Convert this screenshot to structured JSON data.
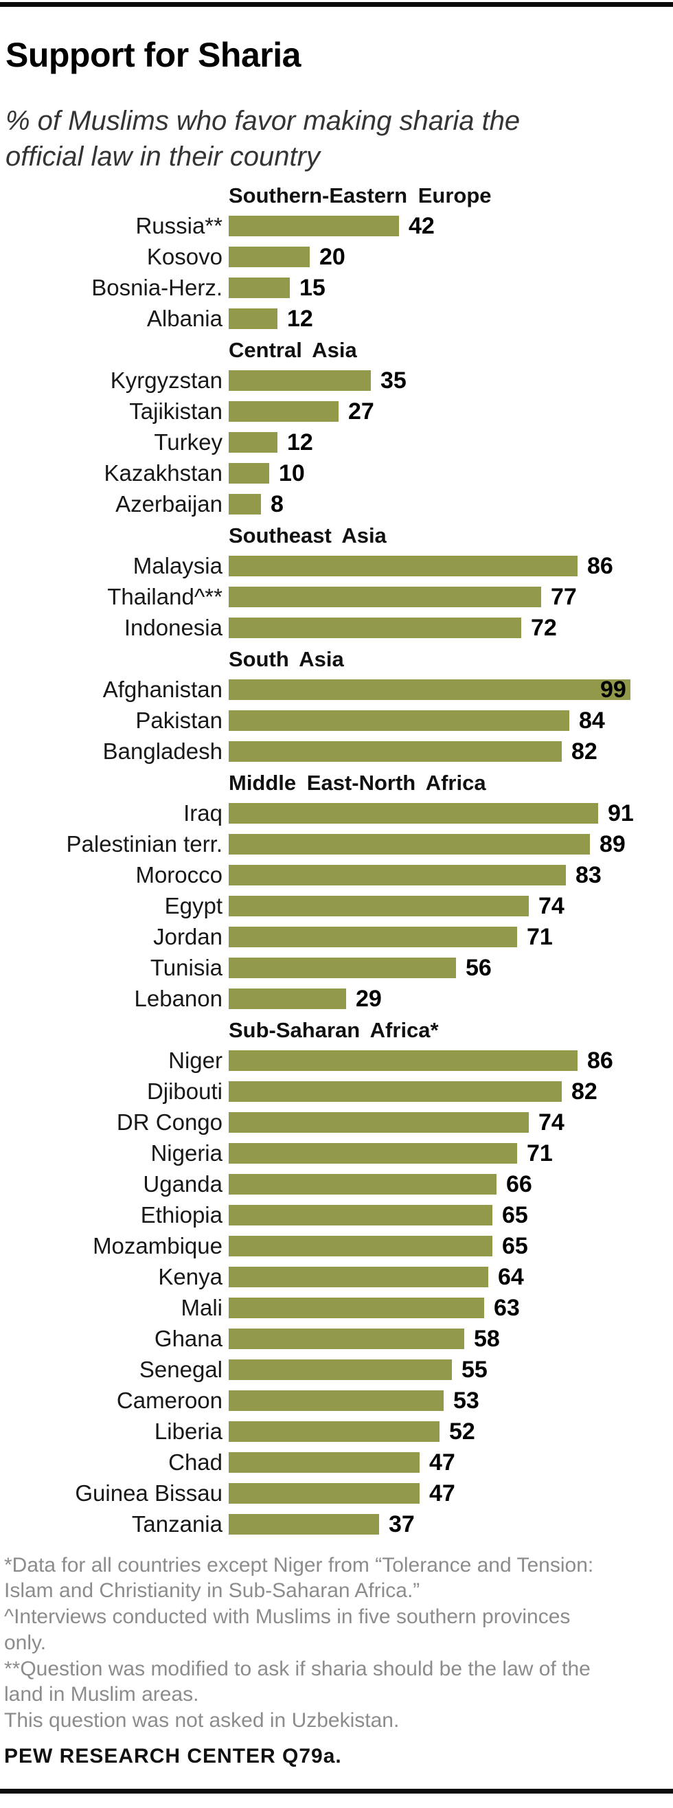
{
  "page": {
    "title": "Support for Sharia",
    "subtitle": "% of Muslims who favor making sharia the official law in their country"
  },
  "chart_data": {
    "type": "bar",
    "orientation": "horizontal",
    "unit": "% of Muslims",
    "xlim": [
      0,
      100
    ],
    "bar_color": "#93994B",
    "grid": false,
    "legend": false,
    "sections": [
      {
        "label": "Southern-Eastern Europe",
        "rows": [
          {
            "country": "Russia**",
            "value": 42
          },
          {
            "country": "Kosovo",
            "value": 20
          },
          {
            "country": "Bosnia-Herz.",
            "value": 15
          },
          {
            "country": "Albania",
            "value": 12
          }
        ]
      },
      {
        "label": "Central Asia",
        "rows": [
          {
            "country": "Kyrgyzstan",
            "value": 35
          },
          {
            "country": "Tajikistan",
            "value": 27
          },
          {
            "country": "Turkey",
            "value": 12
          },
          {
            "country": "Kazakhstan",
            "value": 10
          },
          {
            "country": "Azerbaijan",
            "value": 8
          }
        ]
      },
      {
        "label": "Southeast Asia",
        "rows": [
          {
            "country": "Malaysia",
            "value": 86
          },
          {
            "country": "Thailand^**",
            "value": 77
          },
          {
            "country": "Indonesia",
            "value": 72
          }
        ]
      },
      {
        "label": "South Asia",
        "rows": [
          {
            "country": "Afghanistan",
            "value": 99
          },
          {
            "country": "Pakistan",
            "value": 84
          },
          {
            "country": "Bangladesh",
            "value": 82
          }
        ]
      },
      {
        "label": "Middle East-North Africa",
        "rows": [
          {
            "country": "Iraq",
            "value": 91
          },
          {
            "country": "Palestinian terr.",
            "value": 89
          },
          {
            "country": "Morocco",
            "value": 83
          },
          {
            "country": "Egypt",
            "value": 74
          },
          {
            "country": "Jordan",
            "value": 71
          },
          {
            "country": "Tunisia",
            "value": 56
          },
          {
            "country": "Lebanon",
            "value": 29
          }
        ]
      },
      {
        "label": "Sub-Saharan Africa*",
        "rows": [
          {
            "country": "Niger",
            "value": 86
          },
          {
            "country": "Djibouti",
            "value": 82
          },
          {
            "country": "DR Congo",
            "value": 74
          },
          {
            "country": "Nigeria",
            "value": 71
          },
          {
            "country": "Uganda",
            "value": 66
          },
          {
            "country": "Ethiopia",
            "value": 65
          },
          {
            "country": "Mozambique",
            "value": 65
          },
          {
            "country": "Kenya",
            "value": 64
          },
          {
            "country": "Mali",
            "value": 63
          },
          {
            "country": "Ghana",
            "value": 58
          },
          {
            "country": "Senegal",
            "value": 55
          },
          {
            "country": "Cameroon",
            "value": 53
          },
          {
            "country": "Liberia",
            "value": 52
          },
          {
            "country": "Chad",
            "value": 47
          },
          {
            "country": "Guinea Bissau",
            "value": 47
          },
          {
            "country": "Tanzania",
            "value": 37
          }
        ]
      }
    ]
  },
  "footnotes": [
    "*Data for all countries except Niger from “Tolerance and Tension: Islam and Christianity in Sub-Saharan Africa.”",
    "^Interviews conducted with Muslims in five southern provinces only.",
    "**Question was modified to ask if sharia should be the law of the land in Muslim areas.",
    "This question was not asked in Uzbekistan."
  ],
  "source": "PEW RESEARCH CENTER Q79a."
}
